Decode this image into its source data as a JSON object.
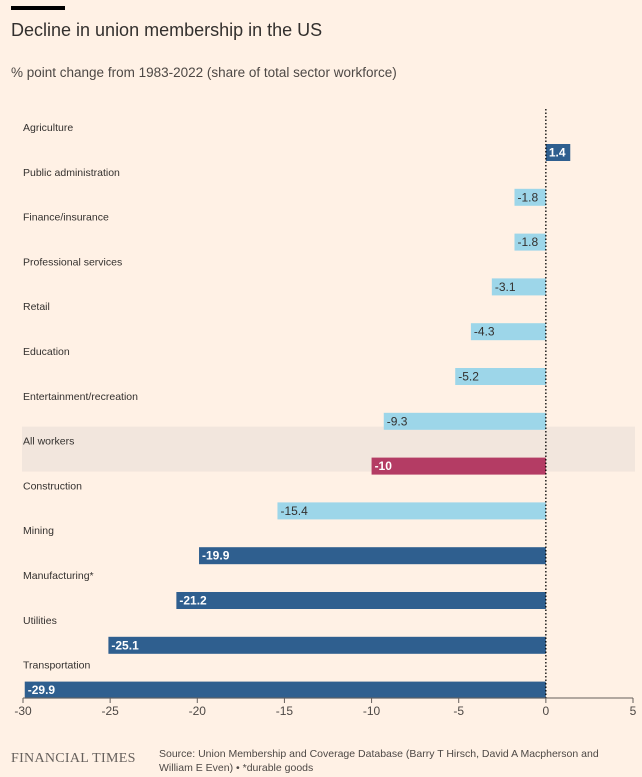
{
  "header": {
    "title": "Decline in union membership in the US",
    "subtitle": "% point change from 1983-2022 (share of total sector workforce)"
  },
  "footer": {
    "logo": "FINANCIAL TIMES",
    "source": "Source: Union Membership and Coverage Database (Barry T Hirsch, David A Macpherson and William E Even) • *durable goods"
  },
  "colors": {
    "background": "#fff1e5",
    "light_bar": "#9dd6e9",
    "dark_bar": "#2f5f8f",
    "highlight_bar": "#b43c64",
    "highlight_band": "#f2e6dd"
  },
  "chart_data": {
    "type": "bar",
    "orientation": "horizontal",
    "categories": [
      "Agriculture",
      "Public administration",
      "Finance/insurance",
      "Professional services",
      "Retail",
      "Education",
      "Entertainment/recreation",
      "All workers",
      "Construction",
      "Mining",
      "Manufacturing*",
      "Utilities",
      "Transportation"
    ],
    "values": [
      1.4,
      -1.8,
      -1.8,
      -3.1,
      -4.3,
      -5.2,
      -9.3,
      -10,
      -15.4,
      -19.9,
      -21.2,
      -25.1,
      -29.9
    ],
    "value_labels": [
      "1.4",
      "-1.8",
      "-1.8",
      "-3.1",
      "-4.3",
      "-5.2",
      "-9.3",
      "-10",
      "-15.4",
      "-19.9",
      "-21.2",
      "-25.1",
      "-29.9"
    ],
    "highlight": "All workers",
    "xlim": [
      -30,
      5
    ],
    "xticks": [
      -30,
      -25,
      -20,
      -15,
      -10,
      -5,
      0,
      5
    ],
    "xtick_labels": [
      "-30",
      "-25",
      "-20",
      "-15",
      "-10",
      "-5",
      "0",
      "5"
    ],
    "zero_line": "dotted"
  }
}
